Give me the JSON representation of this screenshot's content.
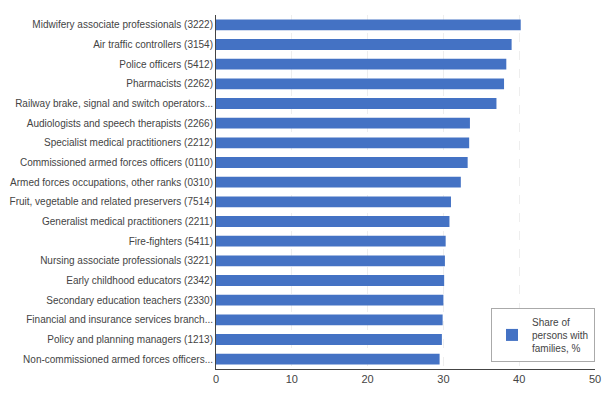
{
  "chart_data": {
    "type": "bar",
    "orientation": "horizontal",
    "categories": [
      "Non-commissioned armed forces officers...",
      "Policy and planning managers (1213)",
      "Financial and insurance services branch...",
      "Secondary education teachers (2330)",
      "Early childhood educators (2342)",
      "Nursing associate professionals (3221)",
      "Fire-fighters (5411)",
      "Generalist medical practitioners (2211)",
      "Fruit, vegetable and related preservers (7514)",
      "Armed forces occupations, other ranks (0310)",
      "Commissioned armed forces officers (0110)",
      "Specialist medical practitioners (2212)",
      "Audiologists and speech therapists (2266)",
      "Railway brake, signal and switch operators...",
      "Pharmacists (2262)",
      "Police officers (5412)",
      "Air traffic controllers (3154)",
      "Midwifery associate professionals (3222)"
    ],
    "series": [
      {
        "name": "Share of\npersons with\nfamilies, %",
        "color": "#4472C4",
        "values": [
          29.5,
          29.8,
          29.9,
          30.0,
          30.1,
          30.2,
          30.3,
          30.8,
          31.0,
          32.3,
          33.2,
          33.4,
          33.5,
          37.0,
          38.0,
          38.3,
          39.0,
          40.2
        ]
      }
    ],
    "xlim": [
      0,
      50
    ],
    "xticks": [
      0,
      10,
      20,
      30,
      40,
      50
    ],
    "grid": true,
    "legend": "lower right"
  }
}
